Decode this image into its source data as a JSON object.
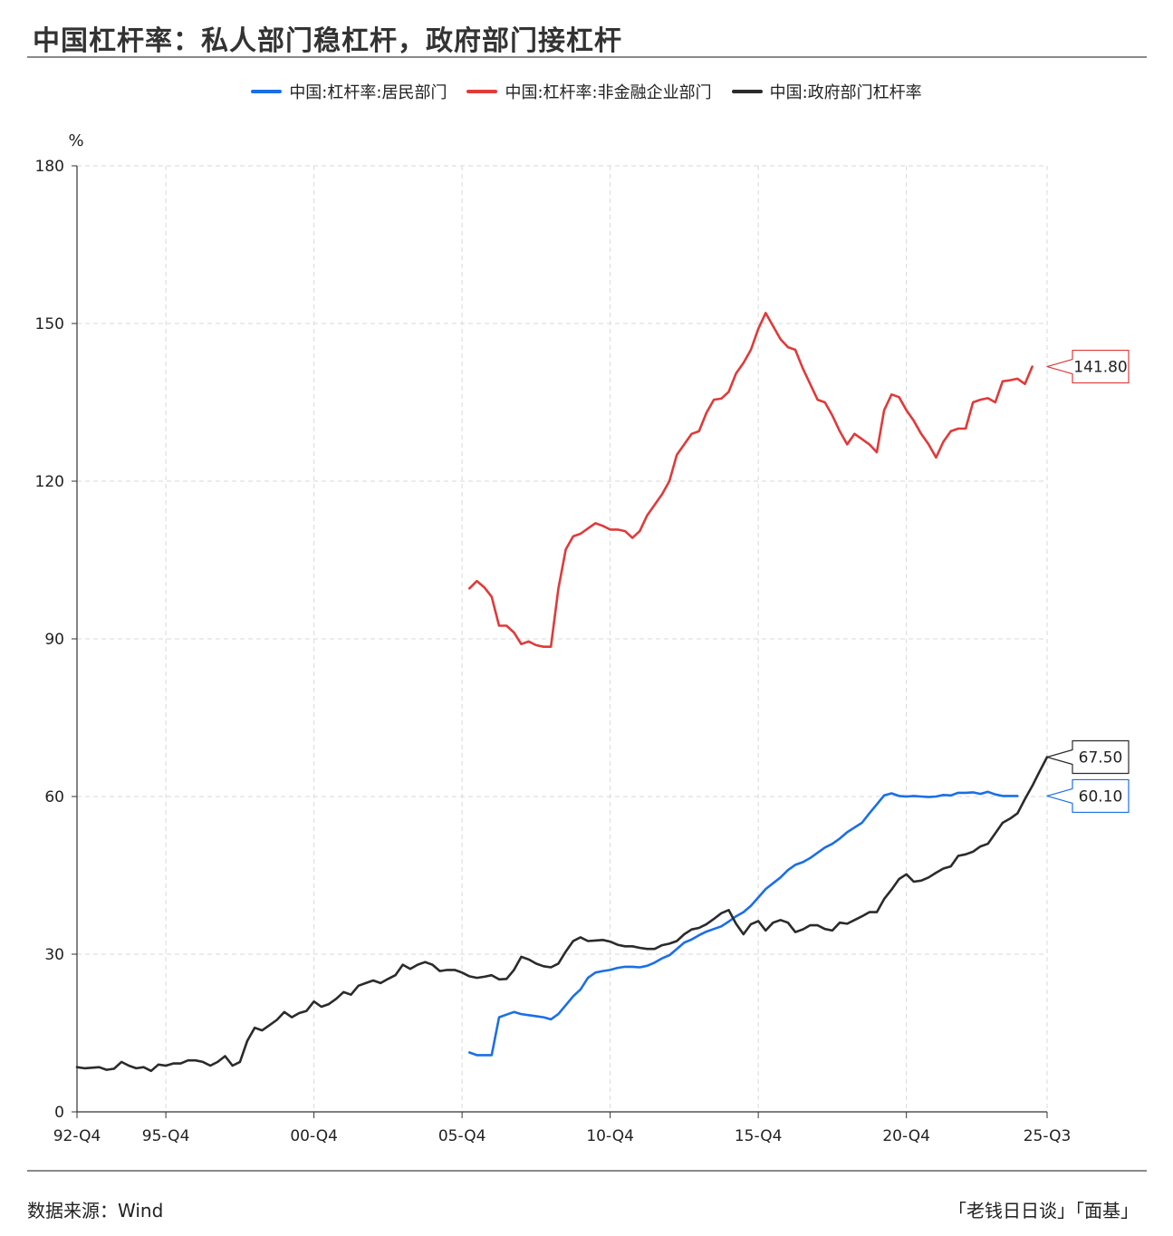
{
  "title": "中国杠杆率：私人部门稳杠杆，政府部门接杠杆",
  "footer": {
    "source": "数据来源：Wind",
    "credit": "「老钱日日谈」「面基」"
  },
  "chart_data": {
    "type": "line",
    "unit_label": "%",
    "ylim": [
      0,
      180
    ],
    "y_ticks": [
      0,
      30,
      60,
      90,
      120,
      150,
      180
    ],
    "x_start_quarter": "1992-Q4",
    "x_tick_labels": [
      {
        "label": "92-Q4",
        "q": 0
      },
      {
        "label": "95-Q4",
        "q": 12
      },
      {
        "label": "00-Q4",
        "q": 32
      },
      {
        "label": "05-Q4",
        "q": 52
      },
      {
        "label": "10-Q4",
        "q": 72
      },
      {
        "label": "15-Q4",
        "q": 92
      },
      {
        "label": "20-Q4",
        "q": 112
      },
      {
        "label": "25-Q3",
        "q": 131
      }
    ],
    "grid": true,
    "series": [
      {
        "name": "中国:杠杆率:居民部门",
        "color": "#1a6fe6",
        "end_label": "60.10",
        "points": [
          [
            53,
            11.3
          ],
          [
            54,
            10.8
          ],
          [
            55,
            10.8
          ],
          [
            56,
            10.8
          ],
          [
            57,
            18.0
          ],
          [
            58,
            18.5
          ],
          [
            59,
            19.0
          ],
          [
            60,
            18.6
          ],
          [
            61,
            18.4
          ],
          [
            62,
            18.2
          ],
          [
            63,
            18.0
          ],
          [
            64,
            17.6
          ],
          [
            65,
            18.6
          ],
          [
            66,
            20.3
          ],
          [
            67,
            22.0
          ],
          [
            68,
            23.3
          ],
          [
            69,
            25.5
          ],
          [
            70,
            26.5
          ],
          [
            71,
            26.8
          ],
          [
            72,
            27.0
          ],
          [
            73,
            27.4
          ],
          [
            74,
            27.6
          ],
          [
            75,
            27.6
          ],
          [
            76,
            27.5
          ],
          [
            77,
            27.8
          ],
          [
            78,
            28.4
          ],
          [
            79,
            29.2
          ],
          [
            80,
            29.8
          ],
          [
            81,
            31.0
          ],
          [
            82,
            32.2
          ],
          [
            83,
            32.8
          ],
          [
            84,
            33.6
          ],
          [
            85,
            34.3
          ],
          [
            86,
            34.8
          ],
          [
            87,
            35.3
          ],
          [
            88,
            36.2
          ],
          [
            89,
            37.2
          ],
          [
            90,
            38.0
          ],
          [
            91,
            39.2
          ],
          [
            92,
            40.8
          ],
          [
            93,
            42.4
          ],
          [
            94,
            43.5
          ],
          [
            95,
            44.6
          ],
          [
            96,
            46.0
          ],
          [
            97,
            47.0
          ],
          [
            98,
            47.5
          ],
          [
            99,
            48.3
          ],
          [
            100,
            49.3
          ],
          [
            101,
            50.3
          ],
          [
            102,
            51.0
          ],
          [
            103,
            52.0
          ],
          [
            104,
            53.2
          ],
          [
            105,
            54.1
          ],
          [
            106,
            55.0
          ],
          [
            107,
            56.8
          ],
          [
            108,
            58.5
          ],
          [
            109,
            60.2
          ],
          [
            110,
            60.6
          ],
          [
            111,
            60.1
          ],
          [
            112,
            60.0
          ],
          [
            113,
            60.1
          ],
          [
            114,
            60.0
          ],
          [
            115,
            59.9
          ],
          [
            116,
            60.0
          ],
          [
            117,
            60.3
          ],
          [
            118,
            60.2
          ],
          [
            119,
            60.7
          ],
          [
            120,
            60.7
          ],
          [
            121,
            60.8
          ],
          [
            122,
            60.5
          ],
          [
            123,
            60.9
          ],
          [
            124,
            60.4
          ],
          [
            125,
            60.1
          ],
          [
            126,
            60.1
          ],
          [
            127,
            60.1
          ]
        ]
      },
      {
        "name": "中国:杠杆率:非金融企业部门",
        "color": "#e03a3a",
        "end_label": "141.80",
        "points": [
          [
            53,
            99.6
          ],
          [
            54,
            101.0
          ],
          [
            55,
            99.8
          ],
          [
            56,
            98.0
          ],
          [
            57,
            92.5
          ],
          [
            58,
            92.5
          ],
          [
            59,
            91.2
          ],
          [
            60,
            89.0
          ],
          [
            61,
            89.5
          ],
          [
            62,
            88.8
          ],
          [
            63,
            88.5
          ],
          [
            64,
            88.5
          ],
          [
            65,
            99.5
          ],
          [
            66,
            107.0
          ],
          [
            67,
            109.5
          ],
          [
            68,
            110.0
          ],
          [
            69,
            111.0
          ],
          [
            70,
            112.0
          ],
          [
            71,
            111.5
          ],
          [
            72,
            110.8
          ],
          [
            73,
            110.8
          ],
          [
            74,
            110.5
          ],
          [
            75,
            109.2
          ],
          [
            76,
            110.5
          ],
          [
            77,
            113.5
          ],
          [
            78,
            115.5
          ],
          [
            79,
            117.5
          ],
          [
            80,
            120.0
          ],
          [
            81,
            125.0
          ],
          [
            82,
            127.0
          ],
          [
            83,
            129.0
          ],
          [
            84,
            129.5
          ],
          [
            85,
            133.0
          ],
          [
            86,
            135.5
          ],
          [
            87,
            135.7
          ],
          [
            88,
            137.0
          ],
          [
            89,
            140.5
          ],
          [
            90,
            142.5
          ],
          [
            91,
            145.0
          ],
          [
            92,
            149.0
          ],
          [
            93,
            152.0
          ],
          [
            94,
            149.5
          ],
          [
            95,
            147.0
          ],
          [
            96,
            145.5
          ],
          [
            97,
            145.0
          ],
          [
            98,
            141.5
          ],
          [
            99,
            138.5
          ],
          [
            100,
            135.5
          ],
          [
            101,
            135.0
          ],
          [
            102,
            132.5
          ],
          [
            103,
            129.5
          ],
          [
            104,
            127.0
          ],
          [
            105,
            129.0
          ],
          [
            106,
            128.0
          ],
          [
            107,
            127.0
          ],
          [
            108,
            125.5
          ],
          [
            109,
            133.5
          ],
          [
            110,
            136.5
          ],
          [
            111,
            136.0
          ],
          [
            112,
            133.5
          ],
          [
            113,
            131.5
          ],
          [
            114,
            129.0
          ],
          [
            115,
            127.0
          ],
          [
            116,
            124.5
          ],
          [
            117,
            127.5
          ],
          [
            118,
            129.5
          ],
          [
            119,
            130.0
          ],
          [
            120,
            130.0
          ],
          [
            121,
            135.0
          ],
          [
            122,
            135.5
          ],
          [
            123,
            135.8
          ],
          [
            124,
            135.0
          ],
          [
            125,
            139.0
          ],
          [
            126,
            139.2
          ],
          [
            127,
            139.5
          ],
          [
            128,
            138.5
          ],
          [
            129,
            141.8
          ]
        ]
      },
      {
        "name": "中国:政府部门杠杆率",
        "color": "#2b2b2b",
        "end_label": "67.50",
        "points": [
          [
            0,
            8.5
          ],
          [
            1,
            8.3
          ],
          [
            2,
            8.4
          ],
          [
            3,
            8.5
          ],
          [
            4,
            8.0
          ],
          [
            5,
            8.2
          ],
          [
            6,
            9.5
          ],
          [
            7,
            8.8
          ],
          [
            8,
            8.3
          ],
          [
            9,
            8.5
          ],
          [
            10,
            7.8
          ],
          [
            11,
            9.0
          ],
          [
            12,
            8.8
          ],
          [
            13,
            9.2
          ],
          [
            14,
            9.2
          ],
          [
            15,
            9.8
          ],
          [
            16,
            9.8
          ],
          [
            17,
            9.5
          ],
          [
            18,
            8.8
          ],
          [
            19,
            9.5
          ],
          [
            20,
            10.6
          ],
          [
            21,
            8.8
          ],
          [
            22,
            9.5
          ],
          [
            23,
            13.5
          ],
          [
            24,
            16.0
          ],
          [
            25,
            15.5
          ],
          [
            26,
            16.5
          ],
          [
            27,
            17.5
          ],
          [
            28,
            19.0
          ],
          [
            29,
            18.0
          ],
          [
            30,
            18.8
          ],
          [
            31,
            19.2
          ],
          [
            32,
            21.0
          ],
          [
            33,
            20.0
          ],
          [
            34,
            20.5
          ],
          [
            35,
            21.5
          ],
          [
            36,
            22.8
          ],
          [
            37,
            22.3
          ],
          [
            38,
            24.0
          ],
          [
            39,
            24.5
          ],
          [
            40,
            25.0
          ],
          [
            41,
            24.5
          ],
          [
            42,
            25.3
          ],
          [
            43,
            26.0
          ],
          [
            44,
            28.0
          ],
          [
            45,
            27.2
          ],
          [
            46,
            28.0
          ],
          [
            47,
            28.5
          ],
          [
            48,
            28.0
          ],
          [
            49,
            26.8
          ],
          [
            50,
            27.0
          ],
          [
            51,
            27.0
          ],
          [
            52,
            26.5
          ],
          [
            53,
            25.8
          ],
          [
            54,
            25.5
          ],
          [
            55,
            25.7
          ],
          [
            56,
            26.0
          ],
          [
            57,
            25.2
          ],
          [
            58,
            25.3
          ],
          [
            59,
            27.0
          ],
          [
            60,
            29.5
          ],
          [
            61,
            29.0
          ],
          [
            62,
            28.2
          ],
          [
            63,
            27.7
          ],
          [
            64,
            27.5
          ],
          [
            65,
            28.2
          ],
          [
            66,
            30.5
          ],
          [
            67,
            32.5
          ],
          [
            68,
            33.2
          ],
          [
            69,
            32.5
          ],
          [
            70,
            32.6
          ],
          [
            71,
            32.7
          ],
          [
            72,
            32.4
          ],
          [
            73,
            31.8
          ],
          [
            74,
            31.5
          ],
          [
            75,
            31.5
          ],
          [
            76,
            31.2
          ],
          [
            77,
            31.0
          ],
          [
            78,
            31.0
          ],
          [
            79,
            31.7
          ],
          [
            80,
            32.0
          ],
          [
            81,
            32.5
          ],
          [
            82,
            33.8
          ],
          [
            83,
            34.7
          ],
          [
            84,
            35.0
          ],
          [
            85,
            35.7
          ],
          [
            86,
            36.7
          ],
          [
            87,
            37.8
          ],
          [
            88,
            38.4
          ],
          [
            89,
            35.8
          ],
          [
            90,
            33.8
          ],
          [
            91,
            35.7
          ],
          [
            92,
            36.3
          ],
          [
            93,
            34.5
          ],
          [
            94,
            36.0
          ],
          [
            95,
            36.5
          ],
          [
            96,
            36.0
          ],
          [
            97,
            34.2
          ],
          [
            98,
            34.7
          ],
          [
            99,
            35.5
          ],
          [
            100,
            35.5
          ],
          [
            101,
            34.8
          ],
          [
            102,
            34.5
          ],
          [
            103,
            36.0
          ],
          [
            104,
            35.8
          ],
          [
            105,
            36.5
          ],
          [
            106,
            37.2
          ],
          [
            107,
            38.0
          ],
          [
            108,
            38.0
          ],
          [
            109,
            40.5
          ],
          [
            110,
            42.3
          ],
          [
            111,
            44.3
          ],
          [
            112,
            45.2
          ],
          [
            113,
            43.8
          ],
          [
            114,
            44.0
          ],
          [
            115,
            44.6
          ],
          [
            116,
            45.5
          ],
          [
            117,
            46.3
          ],
          [
            118,
            46.7
          ],
          [
            119,
            48.7
          ],
          [
            120,
            49.0
          ],
          [
            121,
            49.5
          ],
          [
            122,
            50.5
          ],
          [
            123,
            51.0
          ],
          [
            124,
            53.0
          ],
          [
            125,
            55.0
          ],
          [
            126,
            55.8
          ],
          [
            127,
            56.8
          ],
          [
            128,
            59.5
          ],
          [
            129,
            62.0
          ],
          [
            130,
            64.8
          ],
          [
            131,
            67.5
          ]
        ]
      }
    ]
  }
}
